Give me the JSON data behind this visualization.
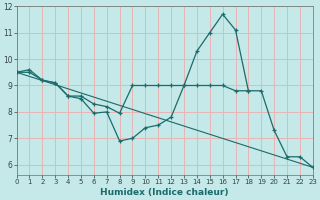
{
  "xlabel": "Humidex (Indice chaleur)",
  "bg_color": "#c5e8e8",
  "grid_color": "#e8b4b4",
  "line_color": "#1a6b6b",
  "x_min": 0,
  "x_max": 23,
  "y_min": 5.6,
  "y_max": 12.0,
  "yticks": [
    6,
    7,
    8,
    9,
    10,
    11,
    12
  ],
  "series1_x": [
    0,
    1,
    2,
    3,
    4,
    5,
    6,
    7,
    8,
    9,
    10,
    11,
    12,
    13,
    14,
    15,
    16,
    17,
    18,
    19,
    20,
    21,
    22,
    23
  ],
  "series1_y": [
    9.5,
    9.6,
    9.2,
    9.1,
    8.6,
    8.5,
    7.95,
    8.0,
    6.9,
    7.0,
    7.4,
    7.5,
    7.8,
    9.0,
    10.3,
    11.0,
    11.7,
    11.1,
    8.8,
    8.8,
    7.3,
    6.3,
    6.3,
    5.9
  ],
  "series2_x": [
    0,
    1,
    2,
    3,
    4,
    5,
    6,
    7,
    8,
    9,
    10,
    11,
    12,
    13,
    14,
    15,
    16,
    17,
    18
  ],
  "series2_y": [
    9.5,
    9.5,
    9.2,
    9.1,
    8.6,
    8.6,
    8.3,
    8.2,
    7.95,
    9.0,
    9.0,
    9.0,
    9.0,
    9.0,
    9.0,
    9.0,
    9.0,
    8.8,
    8.8
  ],
  "series3_x": [
    0,
    23
  ],
  "series3_y": [
    9.5,
    5.9
  ]
}
